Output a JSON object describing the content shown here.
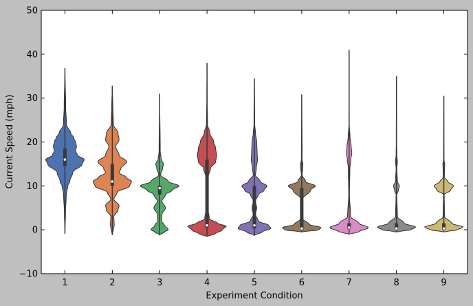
{
  "chart_data": {
    "type": "violin",
    "categories": [
      "1",
      "2",
      "3",
      "4",
      "5",
      "6",
      "7",
      "8",
      "9"
    ],
    "xlabel": "Experiment Condition",
    "ylabel": "Current Speed (mph)",
    "ylim": [
      -10,
      50
    ],
    "yticks": [
      -10,
      0,
      10,
      20,
      30,
      40,
      50
    ],
    "grid": false,
    "colors": [
      "#4c72b0",
      "#dd8452",
      "#55a868",
      "#c44e52",
      "#8172b3",
      "#937860",
      "#da8bc3",
      "#8c8c8c",
      "#ccb974"
    ],
    "series": [
      {
        "min": -0.9,
        "max": 36.8,
        "q1": 14.5,
        "median": 16.0,
        "q3": 18.5,
        "density": [
          [
            -0.9,
            0
          ],
          [
            4,
            0.03
          ],
          [
            8,
            0.07
          ],
          [
            10,
            0.15
          ],
          [
            11,
            0.25
          ],
          [
            13,
            0.4
          ],
          [
            15,
            0.9
          ],
          [
            16,
            1.0
          ],
          [
            17,
            0.65
          ],
          [
            18,
            0.55
          ],
          [
            19,
            0.6
          ],
          [
            20,
            0.55
          ],
          [
            21,
            0.45
          ],
          [
            22,
            0.3
          ],
          [
            24,
            0.08
          ],
          [
            28,
            0.04
          ],
          [
            36.8,
            0
          ]
        ]
      },
      {
        "min": -1.2,
        "max": 32.8,
        "q1": 10.0,
        "median": 11.0,
        "q3": 15.0,
        "density": [
          [
            -1.2,
            0
          ],
          [
            0,
            0.05
          ],
          [
            1,
            0.1
          ],
          [
            3,
            0.08
          ],
          [
            4.5,
            0.3
          ],
          [
            5.5,
            0.35
          ],
          [
            7,
            0.08
          ],
          [
            8.5,
            0.25
          ],
          [
            10,
            0.9
          ],
          [
            11,
            1.0
          ],
          [
            12,
            0.7
          ],
          [
            13,
            0.35
          ],
          [
            14,
            0.45
          ],
          [
            15.5,
            0.75
          ],
          [
            17,
            0.35
          ],
          [
            19,
            0.18
          ],
          [
            20.5,
            0.35
          ],
          [
            22,
            0.3
          ],
          [
            24,
            0.06
          ],
          [
            28,
            0.03
          ],
          [
            32.8,
            0
          ]
        ]
      },
      {
        "min": -1.2,
        "max": 31.0,
        "q1": 8.0,
        "median": 9.5,
        "q3": 10.0,
        "density": [
          [
            -1.2,
            0
          ],
          [
            -0.5,
            0.25
          ],
          [
            0,
            0.45
          ],
          [
            1,
            0.25
          ],
          [
            2,
            0.1
          ],
          [
            3.5,
            0.12
          ],
          [
            5,
            0.3
          ],
          [
            6.5,
            0.12
          ],
          [
            8,
            0.3
          ],
          [
            9,
            0.65
          ],
          [
            10,
            1.0
          ],
          [
            11,
            0.45
          ],
          [
            12.5,
            0.05
          ],
          [
            14,
            0.15
          ],
          [
            15,
            0.2
          ],
          [
            16,
            0.08
          ],
          [
            18,
            0.03
          ],
          [
            31,
            0
          ]
        ]
      },
      {
        "min": -1.5,
        "max": 38.0,
        "q1": 0.5,
        "median": 1.0,
        "q3": 16.0,
        "density": [
          [
            -1.5,
            0
          ],
          [
            -1,
            0.4
          ],
          [
            0,
            0.8
          ],
          [
            0.8,
            1.0
          ],
          [
            1.5,
            0.55
          ],
          [
            2.5,
            0.12
          ],
          [
            5,
            0.04
          ],
          [
            10,
            0.04
          ],
          [
            12,
            0.06
          ],
          [
            14,
            0.18
          ],
          [
            15.5,
            0.45
          ],
          [
            17,
            0.5
          ],
          [
            18.5,
            0.45
          ],
          [
            20,
            0.35
          ],
          [
            22,
            0.15
          ],
          [
            24,
            0.03
          ],
          [
            30,
            0.01
          ],
          [
            38,
            0
          ]
        ]
      },
      {
        "min": -1.3,
        "max": 34.5,
        "q1": 0.3,
        "median": 1.0,
        "q3": 10.0,
        "density": [
          [
            -1.3,
            0
          ],
          [
            -0.5,
            0.4
          ],
          [
            0.3,
            0.85
          ],
          [
            1,
            0.75
          ],
          [
            2,
            0.2
          ],
          [
            3.5,
            0.06
          ],
          [
            5,
            0.12
          ],
          [
            6.5,
            0.05
          ],
          [
            8,
            0.2
          ],
          [
            9,
            0.5
          ],
          [
            10,
            0.65
          ],
          [
            11,
            0.3
          ],
          [
            12.5,
            0.06
          ],
          [
            14,
            0.1
          ],
          [
            16,
            0.16
          ],
          [
            18,
            0.14
          ],
          [
            20,
            0.12
          ],
          [
            22,
            0.06
          ],
          [
            24,
            0.02
          ],
          [
            34.5,
            0
          ]
        ]
      },
      {
        "min": -0.5,
        "max": 30.8,
        "q1": 0.0,
        "median": 0.3,
        "q3": 9.5,
        "density": [
          [
            -0.5,
            0
          ],
          [
            0,
            0.9
          ],
          [
            0.5,
            1.0
          ],
          [
            1.2,
            0.4
          ],
          [
            2.5,
            0.06
          ],
          [
            5,
            0.05
          ],
          [
            7,
            0.05
          ],
          [
            9,
            0.45
          ],
          [
            10,
            0.7
          ],
          [
            11,
            0.2
          ],
          [
            12.5,
            0.02
          ],
          [
            14,
            0.05
          ],
          [
            15,
            0.06
          ],
          [
            16,
            0.02
          ],
          [
            30.8,
            0
          ]
        ]
      },
      {
        "min": -1.0,
        "max": 41.0,
        "q1": 0.2,
        "median": 0.5,
        "q3": 1.5,
        "density": [
          [
            -1,
            0
          ],
          [
            -0.5,
            0.5
          ],
          [
            0.5,
            1.0
          ],
          [
            1.5,
            0.5
          ],
          [
            3,
            0.08
          ],
          [
            8,
            0.02
          ],
          [
            14,
            0.04
          ],
          [
            16,
            0.09
          ],
          [
            17.5,
            0.14
          ],
          [
            19,
            0.11
          ],
          [
            21,
            0.05
          ],
          [
            24,
            0.01
          ],
          [
            41,
            0
          ]
        ]
      },
      {
        "min": -0.5,
        "max": 35.0,
        "q1": 0.0,
        "median": 0.3,
        "q3": 1.5,
        "density": [
          [
            -0.5,
            0
          ],
          [
            0,
            0.75
          ],
          [
            0.6,
            1.0
          ],
          [
            1.5,
            0.4
          ],
          [
            3,
            0.05
          ],
          [
            8,
            0.02
          ],
          [
            9,
            0.1
          ],
          [
            10,
            0.15
          ],
          [
            11,
            0.05
          ],
          [
            14,
            0.02
          ],
          [
            15.5,
            0.05
          ],
          [
            17,
            0.02
          ],
          [
            20,
            0.01
          ],
          [
            35,
            0
          ]
        ]
      },
      {
        "min": -0.5,
        "max": 30.5,
        "q1": 0.0,
        "median": 0.3,
        "q3": 1.5,
        "density": [
          [
            -0.5,
            0
          ],
          [
            0,
            0.7
          ],
          [
            0.6,
            1.0
          ],
          [
            1.5,
            0.4
          ],
          [
            3,
            0.04
          ],
          [
            5,
            0.03
          ],
          [
            8,
            0.02
          ],
          [
            9,
            0.35
          ],
          [
            10,
            0.5
          ],
          [
            11,
            0.2
          ],
          [
            12,
            0.03
          ],
          [
            14,
            0.04
          ],
          [
            15,
            0.05
          ],
          [
            16,
            0.01
          ],
          [
            30.5,
            0
          ]
        ]
      }
    ]
  }
}
